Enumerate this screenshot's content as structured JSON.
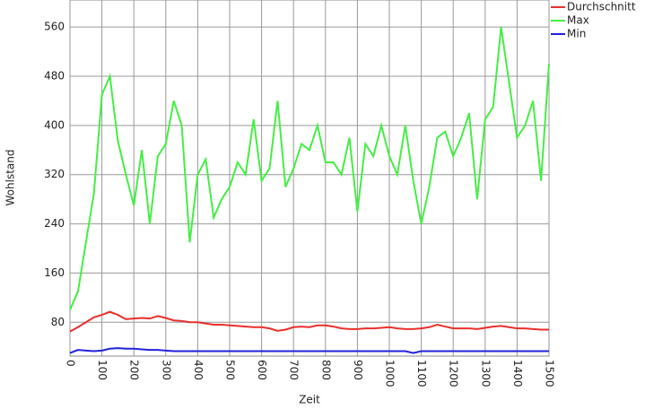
{
  "chart_data": {
    "type": "line",
    "xlabel": "Zeit",
    "ylabel": "Wohlstand",
    "x": [
      0,
      25,
      50,
      75,
      100,
      125,
      150,
      175,
      200,
      225,
      250,
      275,
      300,
      325,
      350,
      375,
      400,
      425,
      450,
      475,
      500,
      525,
      550,
      575,
      600,
      625,
      650,
      675,
      700,
      725,
      750,
      775,
      800,
      825,
      850,
      875,
      900,
      925,
      950,
      975,
      1000,
      1025,
      1050,
      1075,
      1100,
      1125,
      1150,
      1175,
      1200,
      1225,
      1250,
      1275,
      1300,
      1325,
      1350,
      1375,
      1400,
      1425,
      1450,
      1475,
      1500
    ],
    "series": [
      {
        "name": "Durchschnitt",
        "color": "#e8302c",
        "values": [
          65,
          72,
          80,
          88,
          92,
          97,
          92,
          85,
          86,
          87,
          86,
          90,
          87,
          83,
          82,
          80,
          80,
          78,
          76,
          76,
          75,
          74,
          73,
          72,
          72,
          70,
          66,
          68,
          72,
          73,
          72,
          75,
          75,
          73,
          70,
          69,
          69,
          70,
          70,
          71,
          72,
          70,
          69,
          69,
          70,
          72,
          76,
          73,
          70,
          70,
          70,
          69,
          71,
          73,
          74,
          72,
          70,
          70,
          69,
          68,
          68
        ]
      },
      {
        "name": "Max",
        "color": "#44ee44",
        "values": [
          100,
          130,
          210,
          290,
          450,
          480,
          375,
          320,
          270,
          360,
          240,
          350,
          370,
          440,
          400,
          210,
          320,
          345,
          250,
          280,
          300,
          340,
          320,
          410,
          310,
          330,
          440,
          300,
          330,
          370,
          360,
          400,
          340,
          340,
          320,
          380,
          260,
          370,
          350,
          400,
          350,
          320,
          400,
          310,
          240,
          300,
          380,
          390,
          350,
          380,
          420,
          280,
          410,
          430,
          560,
          470,
          380,
          400,
          440,
          310,
          500
        ]
      },
      {
        "name": "Min",
        "color": "#2222dd",
        "values": [
          30,
          35,
          34,
          33,
          34,
          37,
          38,
          37,
          37,
          36,
          35,
          35,
          34,
          33,
          33,
          33,
          33,
          33,
          33,
          33,
          33,
          33,
          33,
          33,
          33,
          33,
          33,
          33,
          33,
          33,
          33,
          33,
          33,
          33,
          33,
          33,
          33,
          33,
          33,
          33,
          33,
          33,
          33,
          30,
          33,
          33,
          33,
          33,
          33,
          33,
          33,
          33,
          33,
          33,
          33,
          33,
          33,
          33,
          33,
          33,
          33
        ]
      }
    ],
    "xlim": [
      0,
      1500
    ],
    "ylim": [
      25,
      604
    ],
    "xticks": [
      0,
      100,
      200,
      300,
      400,
      500,
      600,
      700,
      800,
      900,
      1000,
      1100,
      1200,
      1300,
      1400,
      1500
    ],
    "yticks": [
      80,
      160,
      240,
      320,
      400,
      480,
      560
    ],
    "grid": true,
    "legend": "top-right"
  }
}
